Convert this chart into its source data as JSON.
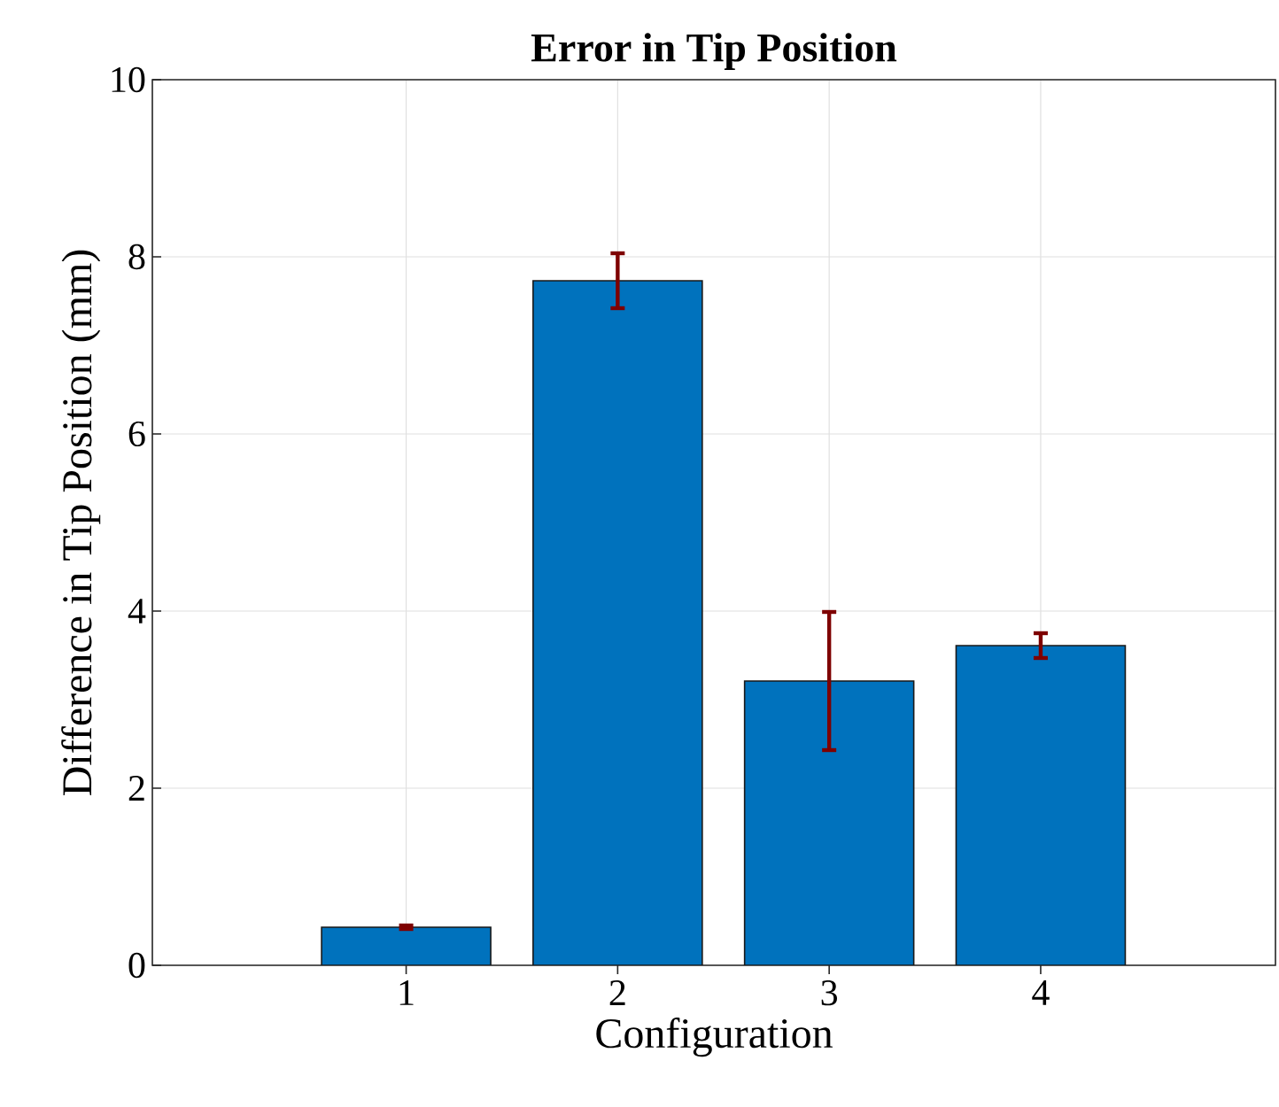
{
  "chart_data": {
    "type": "bar",
    "title": "Error in Tip Position",
    "xlabel": "Configuration",
    "ylabel": "Difference in Tip Position (mm)",
    "categories": [
      "1",
      "2",
      "3",
      "4"
    ],
    "values": [
      0.43,
      7.73,
      3.21,
      3.61
    ],
    "errors": [
      0.02,
      0.31,
      0.78,
      0.14
    ],
    "color": "#0072bd",
    "ylim": [
      0,
      10
    ],
    "yticks": [
      0,
      2,
      4,
      6,
      8,
      10
    ],
    "grid": true
  }
}
